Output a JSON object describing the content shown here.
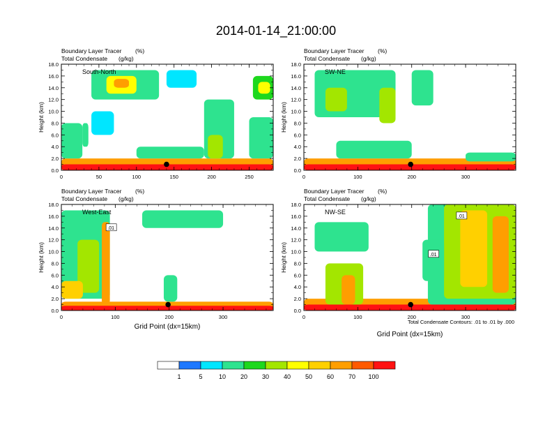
{
  "title": "2014-01-14_21:00:00",
  "footnote": "Total Condensate Contours: .01 to .01 by .000",
  "colorbar": {
    "colors": [
      "#ffffff",
      "#1e78ff",
      "#00e6ff",
      "#2ee38f",
      "#1ed81e",
      "#a3e600",
      "#ffff00",
      "#ffd000",
      "#ff9e00",
      "#ff5a00",
      "#ff1212"
    ],
    "labels": [
      "1",
      "5",
      "10",
      "20",
      "30",
      "40",
      "50",
      "60",
      "70",
      "100"
    ]
  },
  "colors": {
    "contour": "#000000",
    "marker": "#000000"
  },
  "chart_data": [
    {
      "type": "heatmap",
      "panel_label": "South-North",
      "left_string_1": "Boundary Layer Tracer",
      "right_string_1": "(%)",
      "left_string_2": "Total Condensate",
      "right_string_2": "(g/kg)",
      "ylabel": "Height (km)",
      "xlabel": "",
      "xlim": [
        0,
        282
      ],
      "ylim": [
        0,
        18
      ],
      "xticks": [
        0,
        50,
        100,
        150,
        200,
        250
      ],
      "xtick_labels": [
        "0",
        "50",
        "100",
        "150",
        "200",
        "250"
      ],
      "yticks": [
        0,
        2,
        4,
        6,
        8,
        10,
        12,
        14,
        16,
        18
      ],
      "ytick_labels": [
        "0.0",
        "2.0",
        "4.0",
        "6.0",
        "8.0",
        "10.0",
        "12.0",
        "14.0",
        "16.0",
        "18.0"
      ],
      "marker": [
        140,
        1.0
      ],
      "contour_labels": [],
      "tracer_regions": [
        {
          "x": [
            0,
            282
          ],
          "y": [
            0,
            2.0
          ],
          "level": 8
        },
        {
          "x": [
            0,
            282
          ],
          "y": [
            0,
            1.0
          ],
          "level": 10
        },
        {
          "x": [
            0,
            28
          ],
          "y": [
            2,
            8
          ],
          "level": 3
        },
        {
          "x": [
            28,
            36
          ],
          "y": [
            4,
            8
          ],
          "level": 3
        },
        {
          "x": [
            40,
            130
          ],
          "y": [
            12,
            17
          ],
          "level": 3
        },
        {
          "x": [
            60,
            100
          ],
          "y": [
            13,
            16
          ],
          "level": 6
        },
        {
          "x": [
            70,
            90
          ],
          "y": [
            14,
            15.5
          ],
          "level": 8
        },
        {
          "x": [
            40,
            70
          ],
          "y": [
            6,
            10
          ],
          "level": 2
        },
        {
          "x": [
            140,
            180
          ],
          "y": [
            14,
            17
          ],
          "level": 2
        },
        {
          "x": [
            190,
            230
          ],
          "y": [
            2,
            12
          ],
          "level": 3
        },
        {
          "x": [
            195,
            215
          ],
          "y": [
            2,
            6
          ],
          "level": 5
        },
        {
          "x": [
            255,
            282
          ],
          "y": [
            12,
            16
          ],
          "level": 4
        },
        {
          "x": [
            262,
            278
          ],
          "y": [
            13,
            15
          ],
          "level": 6
        },
        {
          "x": [
            250,
            282
          ],
          "y": [
            2,
            9
          ],
          "level": 3
        },
        {
          "x": [
            100,
            190
          ],
          "y": [
            2,
            4
          ],
          "level": 3
        }
      ]
    },
    {
      "type": "heatmap",
      "panel_label": "SW-NE",
      "left_string_1": "Boundary Layer Tracer",
      "right_string_1": "(%)",
      "left_string_2": "Total Condensate",
      "right_string_2": "(g/kg)",
      "ylabel": "Height (km)",
      "xlabel": "",
      "xlim": [
        0,
        393
      ],
      "ylim": [
        0,
        18
      ],
      "xticks": [
        0,
        100,
        200,
        300
      ],
      "xtick_labels": [
        "0",
        "100",
        "200",
        "300"
      ],
      "yticks": [
        0,
        2,
        4,
        6,
        8,
        10,
        12,
        14,
        16,
        18
      ],
      "ytick_labels": [
        "0.0",
        "2.0",
        "4.0",
        "6.0",
        "8.0",
        "10.0",
        "12.0",
        "14.0",
        "16.0",
        "18.0"
      ],
      "marker": [
        198,
        1.0
      ],
      "contour_labels": [],
      "tracer_regions": [
        {
          "x": [
            0,
            393
          ],
          "y": [
            0,
            2.0
          ],
          "level": 8
        },
        {
          "x": [
            0,
            393
          ],
          "y": [
            0,
            1.0
          ],
          "level": 10
        },
        {
          "x": [
            20,
            170
          ],
          "y": [
            9,
            17
          ],
          "level": 3
        },
        {
          "x": [
            40,
            80
          ],
          "y": [
            10,
            14
          ],
          "level": 5
        },
        {
          "x": [
            140,
            170
          ],
          "y": [
            8,
            14
          ],
          "level": 5
        },
        {
          "x": [
            200,
            240
          ],
          "y": [
            11,
            17
          ],
          "level": 3
        },
        {
          "x": [
            60,
            200
          ],
          "y": [
            2,
            5
          ],
          "level": 3
        },
        {
          "x": [
            300,
            393
          ],
          "y": [
            1.5,
            3
          ],
          "level": 3
        }
      ]
    },
    {
      "type": "heatmap",
      "panel_label": "West-East",
      "left_string_1": "Boundary Layer Tracer",
      "right_string_1": "(%)",
      "left_string_2": "Total Condensate",
      "right_string_2": "(g/kg)",
      "ylabel": "Height (km)",
      "xlabel": "Grid Point (dx=15km)",
      "xlim": [
        0,
        393
      ],
      "ylim": [
        0,
        18
      ],
      "xticks": [
        0,
        100,
        200,
        300
      ],
      "xtick_labels": [
        "0",
        "100",
        "200",
        "300"
      ],
      "yticks": [
        0,
        2,
        4,
        6,
        8,
        10,
        12,
        14,
        16,
        18
      ],
      "ytick_labels": [
        "0.0",
        "2.0",
        "4.0",
        "6.0",
        "8.0",
        "10.0",
        "12.0",
        "14.0",
        "16.0",
        "18.0"
      ],
      "marker": [
        198,
        1.0
      ],
      "contour_labels": [
        {
          "text": ".01",
          "x": 92,
          "y": 14.0
        }
      ],
      "tracer_regions": [
        {
          "x": [
            0,
            393
          ],
          "y": [
            0,
            1.5
          ],
          "level": 8
        },
        {
          "x": [
            0,
            393
          ],
          "y": [
            0,
            0.8
          ],
          "level": 10
        },
        {
          "x": [
            0,
            90
          ],
          "y": [
            2,
            17
          ],
          "level": 3
        },
        {
          "x": [
            30,
            70
          ],
          "y": [
            3,
            12
          ],
          "level": 5
        },
        {
          "x": [
            75,
            90
          ],
          "y": [
            1,
            15
          ],
          "level": 8
        },
        {
          "x": [
            150,
            300
          ],
          "y": [
            14,
            17
          ],
          "level": 3
        },
        {
          "x": [
            190,
            215
          ],
          "y": [
            1.5,
            6
          ],
          "level": 3
        },
        {
          "x": [
            0,
            40
          ],
          "y": [
            2,
            5
          ],
          "level": 7
        }
      ]
    },
    {
      "type": "heatmap",
      "panel_label": "NW-SE",
      "left_string_1": "Boundary Layer Tracer",
      "right_string_1": "(%)",
      "left_string_2": "Total Condensate",
      "right_string_2": "(g/kg)",
      "ylabel": "Height (km)",
      "xlabel": "Grid Point (dx=15km)",
      "xlim": [
        0,
        393
      ],
      "ylim": [
        0,
        18
      ],
      "xticks": [
        0,
        100,
        200,
        300
      ],
      "xtick_labels": [
        "0",
        "100",
        "200",
        "300"
      ],
      "yticks": [
        0,
        2,
        4,
        6,
        8,
        10,
        12,
        14,
        16,
        18
      ],
      "ytick_labels": [
        "0.0",
        "2.0",
        "4.0",
        "6.0",
        "8.0",
        "10.0",
        "12.0",
        "14.0",
        "16.0",
        "18.0"
      ],
      "marker": [
        198,
        1.0
      ],
      "contour_labels": [
        {
          "text": ".01",
          "x": 292,
          "y": 16.0
        },
        {
          "text": ".01",
          "x": 240,
          "y": 9.5
        }
      ],
      "tracer_regions": [
        {
          "x": [
            0,
            393
          ],
          "y": [
            0,
            2.0
          ],
          "level": 8
        },
        {
          "x": [
            0,
            393
          ],
          "y": [
            0,
            1.0
          ],
          "level": 10
        },
        {
          "x": [
            20,
            120
          ],
          "y": [
            10,
            15
          ],
          "level": 3
        },
        {
          "x": [
            40,
            110
          ],
          "y": [
            1,
            8
          ],
          "level": 5
        },
        {
          "x": [
            70,
            95
          ],
          "y": [
            1,
            6
          ],
          "level": 8
        },
        {
          "x": [
            230,
            393
          ],
          "y": [
            1,
            18
          ],
          "level": 3
        },
        {
          "x": [
            260,
            393
          ],
          "y": [
            2,
            18
          ],
          "level": 5
        },
        {
          "x": [
            290,
            340
          ],
          "y": [
            4,
            17
          ],
          "level": 7
        },
        {
          "x": [
            350,
            380
          ],
          "y": [
            3,
            16
          ],
          "level": 8
        },
        {
          "x": [
            220,
            260
          ],
          "y": [
            5,
            12
          ],
          "level": 3
        }
      ]
    }
  ]
}
